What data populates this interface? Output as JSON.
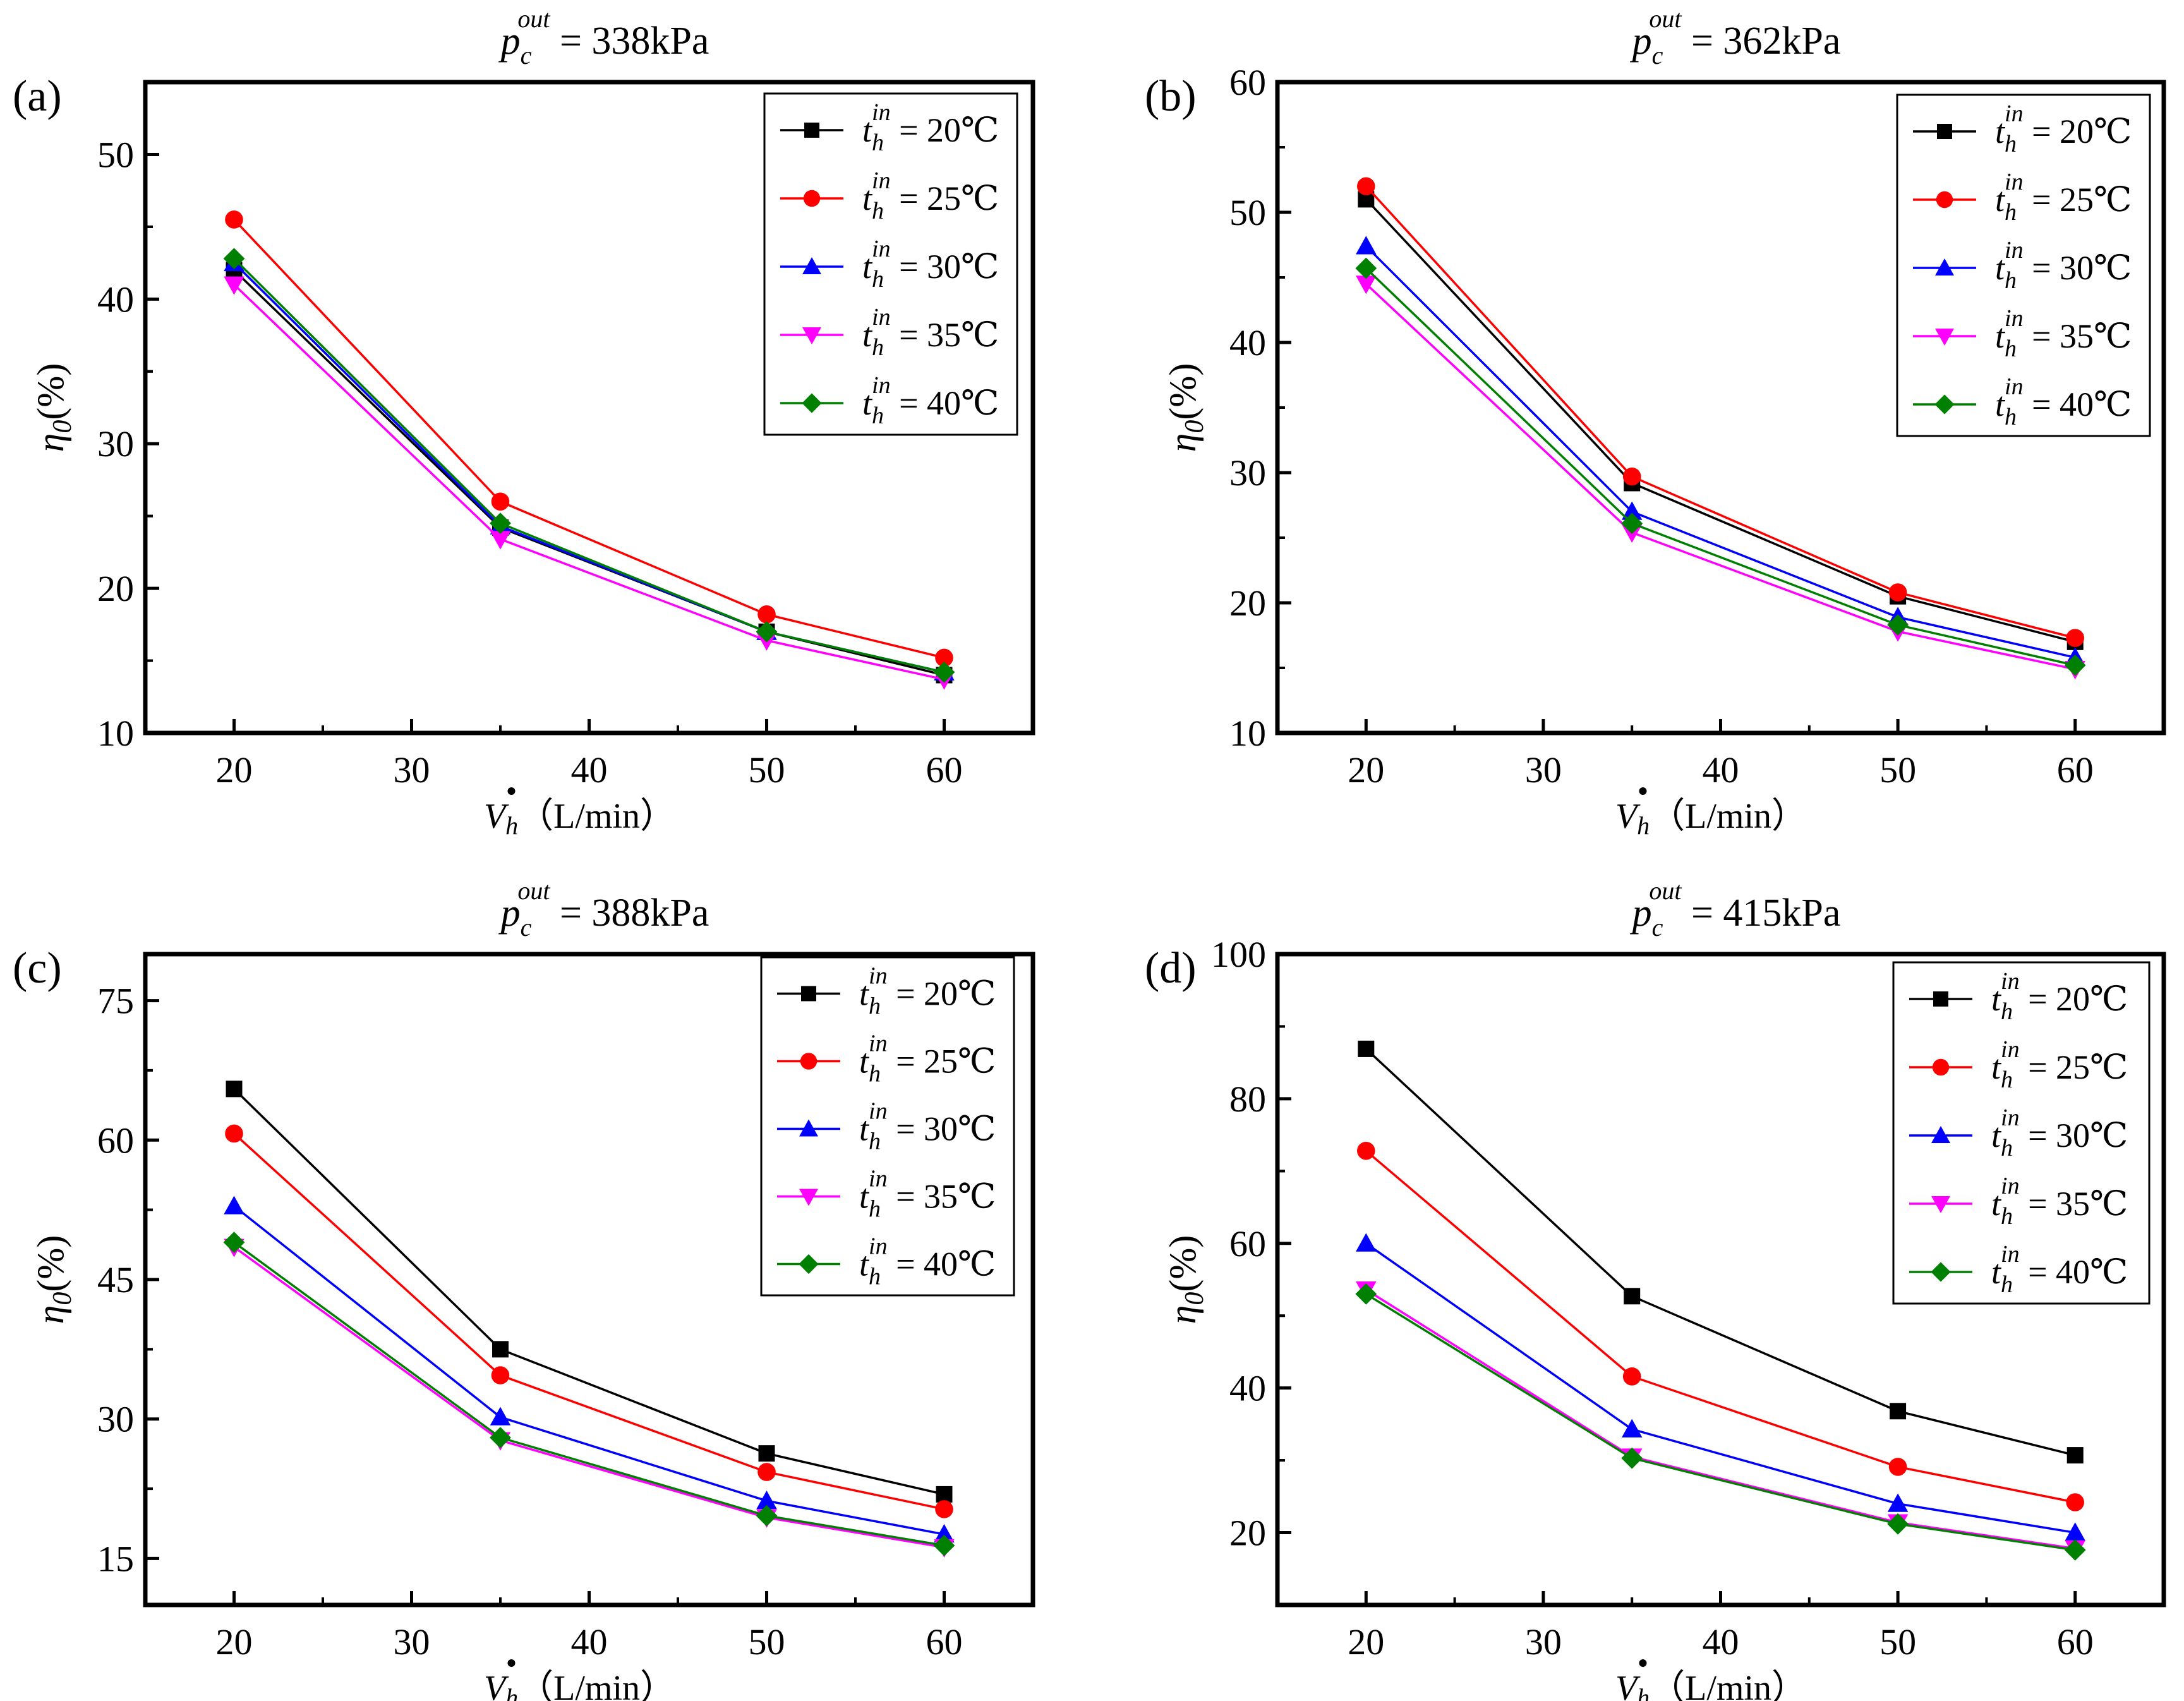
{
  "figure": {
    "x_label_symbol": "V",
    "x_label_sub": "h",
    "x_label_unit": "（L/min）",
    "y_label_symbol": "η",
    "y_label_sub": "0",
    "y_label_unit": "(%)",
    "legend_sub": "h",
    "legend_sup": "in",
    "legend_prefix": "t",
    "legend_eq": " = ",
    "series_styles": [
      {
        "label": "20℃",
        "color": "#000000",
        "marker": "square"
      },
      {
        "label": "25℃",
        "color": "#ff0000",
        "marker": "circle"
      },
      {
        "label": "30℃",
        "color": "#0000ff",
        "marker": "triangle-up"
      },
      {
        "label": "35℃",
        "color": "#ff00ff",
        "marker": "triangle-down"
      },
      {
        "label": "40℃",
        "color": "#008000",
        "marker": "diamond"
      }
    ]
  },
  "chart_data": [
    {
      "type": "line",
      "panel_label": "(a)",
      "title_var": "p",
      "title_sub": "c",
      "title_sup": "out",
      "title_value": " = 338kPa",
      "xlabel": "Vh（L/min）",
      "ylabel": "η0(%)",
      "x": [
        20,
        35,
        50,
        60
      ],
      "xlim": [
        15,
        65
      ],
      "ylim": [
        10,
        55
      ],
      "xticks": [
        "20",
        "30",
        "40",
        "50",
        "60"
      ],
      "xtick_values": [
        20,
        30,
        40,
        50,
        60
      ],
      "yticks": [
        "10",
        "20",
        "30",
        "40",
        "50"
      ],
      "ytick_values": [
        10,
        20,
        30,
        40,
        50
      ],
      "legend_position": "top-right",
      "series": [
        {
          "name": "20℃",
          "values": [
            42.0,
            24.2,
            17.0,
            14.0
          ]
        },
        {
          "name": "25℃",
          "values": [
            45.5,
            26.0,
            18.2,
            15.2
          ]
        },
        {
          "name": "30℃",
          "values": [
            42.5,
            24.3,
            17.0,
            14.2
          ]
        },
        {
          "name": "35℃",
          "values": [
            41.0,
            23.4,
            16.4,
            13.7
          ]
        },
        {
          "name": "40℃",
          "values": [
            42.8,
            24.5,
            17.0,
            14.2
          ]
        }
      ]
    },
    {
      "type": "line",
      "panel_label": "(b)",
      "title_var": "p",
      "title_sub": "c",
      "title_sup": "out",
      "title_value": " = 362kPa",
      "xlabel": "Vh（L/min）",
      "ylabel": "η0(%)",
      "x": [
        20,
        35,
        50,
        60
      ],
      "xlim": [
        15,
        65
      ],
      "ylim": [
        10,
        60
      ],
      "xticks": [
        "20",
        "30",
        "40",
        "50",
        "60"
      ],
      "xtick_values": [
        20,
        30,
        40,
        50,
        60
      ],
      "yticks": [
        "10",
        "20",
        "30",
        "40",
        "50",
        "60"
      ],
      "ytick_values": [
        10,
        20,
        30,
        40,
        50,
        60
      ],
      "legend_position": "top-right",
      "series": [
        {
          "name": "20℃",
          "values": [
            51.0,
            29.2,
            20.5,
            17.0
          ]
        },
        {
          "name": "25℃",
          "values": [
            52.0,
            29.7,
            20.8,
            17.3
          ]
        },
        {
          "name": "30℃",
          "values": [
            47.4,
            27.0,
            18.9,
            15.8
          ]
        },
        {
          "name": "35℃",
          "values": [
            44.5,
            25.4,
            17.8,
            14.9
          ]
        },
        {
          "name": "40℃",
          "values": [
            45.7,
            26.1,
            18.3,
            15.2
          ]
        }
      ]
    },
    {
      "type": "line",
      "panel_label": "(c)",
      "title_var": "p",
      "title_sub": "c",
      "title_sup": "out",
      "title_value": " = 388kPa",
      "xlabel": "Vh（L/min）",
      "ylabel": "η0(%)",
      "x": [
        20,
        35,
        50,
        60
      ],
      "xlim": [
        15,
        65
      ],
      "ylim": [
        10,
        80
      ],
      "xticks": [
        "20",
        "30",
        "40",
        "50",
        "60"
      ],
      "xtick_values": [
        20,
        30,
        40,
        50,
        60
      ],
      "yticks": [
        "15",
        "30",
        "45",
        "60",
        "75"
      ],
      "ytick_values": [
        15,
        30,
        45,
        60,
        75
      ],
      "legend_position": "top-right",
      "series": [
        {
          "name": "20℃",
          "values": [
            65.5,
            37.5,
            26.3,
            21.9
          ]
        },
        {
          "name": "25℃",
          "values": [
            60.7,
            34.7,
            24.3,
            20.3
          ]
        },
        {
          "name": "30℃",
          "values": [
            52.9,
            30.2,
            21.2,
            17.6
          ]
        },
        {
          "name": "35℃",
          "values": [
            48.5,
            27.7,
            19.4,
            16.2
          ]
        },
        {
          "name": "40℃",
          "values": [
            49.0,
            28.0,
            19.6,
            16.4
          ]
        }
      ]
    },
    {
      "type": "line",
      "panel_label": "(d)",
      "title_var": "p",
      "title_sub": "c",
      "title_sup": "out",
      "title_value": " = 415kPa",
      "xlabel": "Vh（L/min）",
      "ylabel": "η0(%)",
      "x": [
        20,
        35,
        50,
        60
      ],
      "xlim": [
        15,
        65
      ],
      "ylim": [
        10,
        100
      ],
      "xticks": [
        "20",
        "30",
        "40",
        "50",
        "60"
      ],
      "xtick_values": [
        20,
        30,
        40,
        50,
        60
      ],
      "yticks": [
        "20",
        "40",
        "60",
        "80",
        "100"
      ],
      "ytick_values": [
        20,
        40,
        60,
        80,
        100
      ],
      "legend_position": "top-right",
      "series": [
        {
          "name": "20℃",
          "values": [
            86.9,
            52.7,
            36.8,
            30.7
          ]
        },
        {
          "name": "25℃",
          "values": [
            72.8,
            41.6,
            29.1,
            24.2
          ]
        },
        {
          "name": "30℃",
          "values": [
            60.0,
            34.3,
            24.0,
            20.0
          ]
        },
        {
          "name": "35℃",
          "values": [
            53.6,
            30.5,
            21.4,
            17.8
          ]
        },
        {
          "name": "40℃",
          "values": [
            53.0,
            30.3,
            21.2,
            17.6
          ]
        }
      ]
    }
  ]
}
